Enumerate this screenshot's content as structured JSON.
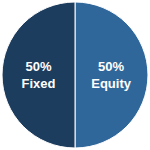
{
  "chart_data": {
    "type": "pie",
    "categories": [
      "Equity",
      "Fixed"
    ],
    "values": [
      50,
      50
    ],
    "value_labels": [
      "50%",
      "50%"
    ],
    "colors": [
      "#30679a",
      "#1d3d5e"
    ],
    "data_labels": true
  }
}
